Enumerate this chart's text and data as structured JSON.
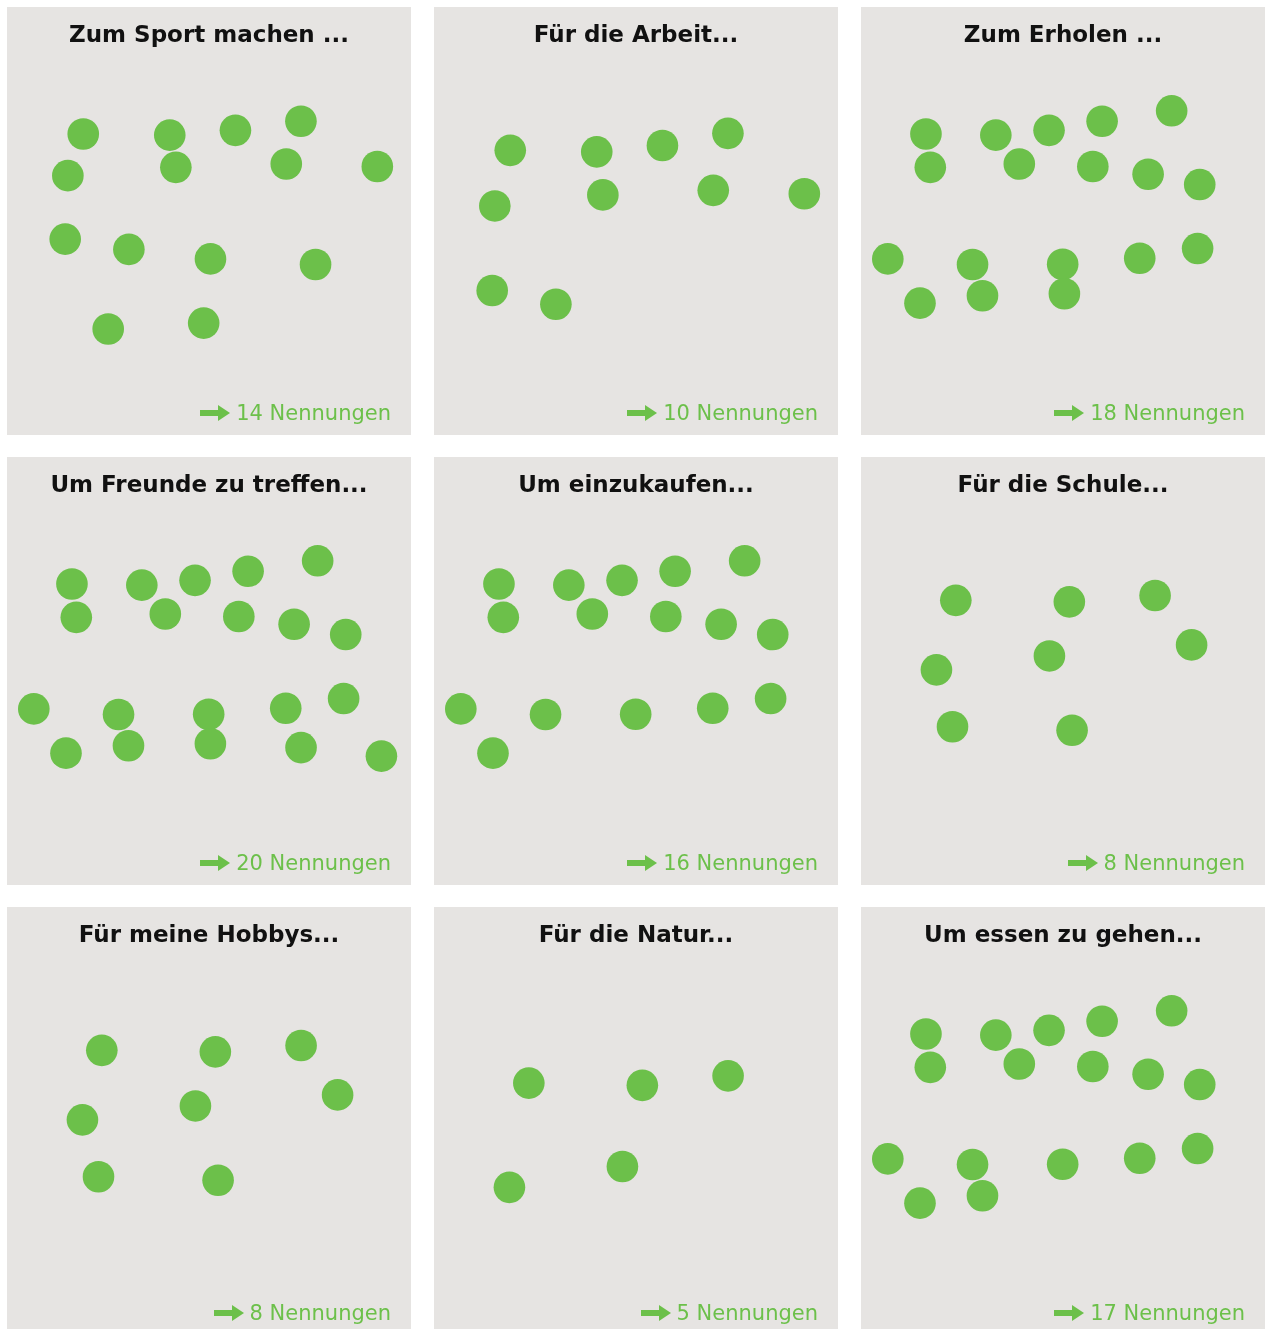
{
  "chart_data": [
    {
      "type": "other",
      "title": "Zum Sport machen ...",
      "values": [
        14
      ],
      "value_labels": [
        "14 Nennungen"
      ]
    },
    {
      "type": "other",
      "title": "Für die Arbeit...",
      "values": [
        10
      ],
      "value_labels": [
        "10 Nennungen"
      ]
    },
    {
      "type": "other",
      "title": "Zum Erholen ...",
      "values": [
        18
      ],
      "value_labels": [
        "18 Nennungen"
      ]
    },
    {
      "type": "other",
      "title": "Um Freunde zu treffen...",
      "values": [
        20
      ],
      "value_labels": [
        "20 Nennungen"
      ]
    },
    {
      "type": "other",
      "title": "Um einzukaufen...",
      "values": [
        16
      ],
      "value_labels": [
        "16 Nennungen"
      ]
    },
    {
      "type": "other",
      "title": "Für die Schule...",
      "values": [
        8
      ],
      "value_labels": [
        "8 Nennungen"
      ]
    },
    {
      "type": "other",
      "title": "Für meine Hobbys...",
      "values": [
        8
      ],
      "value_labels": [
        "8 Nennungen"
      ]
    },
    {
      "type": "other",
      "title": "Für die Natur...",
      "values": [
        5
      ],
      "value_labels": [
        "5 Nennungen"
      ]
    },
    {
      "type": "other",
      "title": "Um essen zu gehen...",
      "values": [
        17
      ],
      "value_labels": [
        "17 Nennungen"
      ]
    }
  ]
}
